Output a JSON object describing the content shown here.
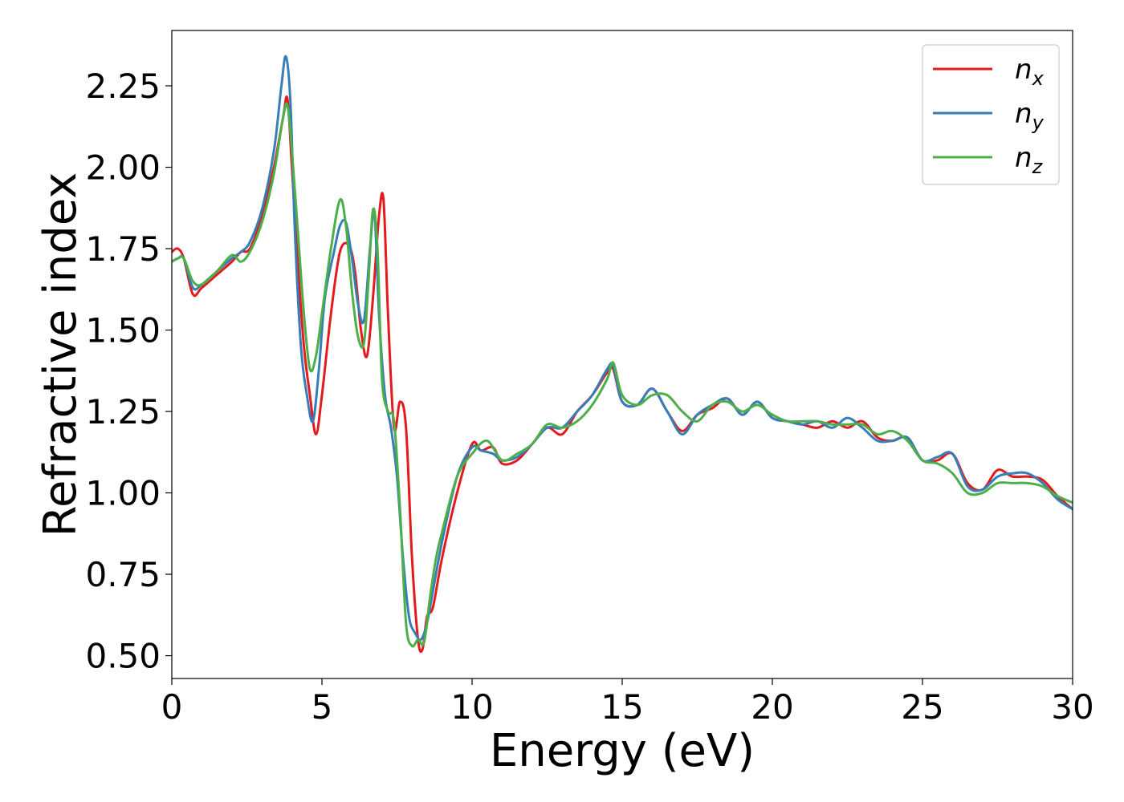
{
  "chart_data": {
    "type": "line",
    "title": "",
    "xlabel": "Energy (eV)",
    "ylabel": "Refractive index",
    "xlim": [
      0,
      30
    ],
    "ylim": [
      0.43,
      2.42
    ],
    "xticks": [
      0,
      5,
      10,
      15,
      20,
      25,
      30
    ],
    "xtick_labels": [
      "0",
      "5",
      "10",
      "15",
      "20",
      "25",
      "30"
    ],
    "yticks": [
      0.5,
      0.75,
      1.0,
      1.25,
      1.5,
      1.75,
      2.0,
      2.25
    ],
    "ytick_labels": [
      "0.50",
      "0.75",
      "1.00",
      "1.25",
      "1.50",
      "1.75",
      "2.00",
      "2.25"
    ],
    "grid": false,
    "legend_position": "top-right",
    "series": [
      {
        "name": "n_x",
        "label_base": "n",
        "label_sub": "x",
        "color": "#e41a1c",
        "x": [
          0,
          0.2,
          0.4,
          0.7,
          1.0,
          1.5,
          2.0,
          2.3,
          2.6,
          3.0,
          3.4,
          3.7,
          3.85,
          4.0,
          4.2,
          4.4,
          4.6,
          4.8,
          5.0,
          5.3,
          5.6,
          5.9,
          6.1,
          6.3,
          6.5,
          6.7,
          6.9,
          7.05,
          7.2,
          7.4,
          7.6,
          7.8,
          8.0,
          8.2,
          8.35,
          8.5,
          8.7,
          9.0,
          9.5,
          10.0,
          10.3,
          10.7,
          11.0,
          11.5,
          12.0,
          12.5,
          13.0,
          13.5,
          14.0,
          14.5,
          14.7,
          15.0,
          15.5,
          16.0,
          16.5,
          17.0,
          17.5,
          18.0,
          18.5,
          19.0,
          19.5,
          20.0,
          20.5,
          21.0,
          21.5,
          22.0,
          22.5,
          23.0,
          23.5,
          24.0,
          24.5,
          25.0,
          25.5,
          26.0,
          26.5,
          27.0,
          27.5,
          28.0,
          28.5,
          29.0,
          29.5,
          30.0
        ],
        "y": [
          1.74,
          1.75,
          1.72,
          1.61,
          1.63,
          1.67,
          1.71,
          1.74,
          1.75,
          1.85,
          2.0,
          2.15,
          2.21,
          2.0,
          1.7,
          1.45,
          1.3,
          1.18,
          1.3,
          1.55,
          1.74,
          1.76,
          1.68,
          1.5,
          1.42,
          1.6,
          1.85,
          1.9,
          1.55,
          1.2,
          1.28,
          1.2,
          0.8,
          0.55,
          0.52,
          0.62,
          0.65,
          0.8,
          1.0,
          1.15,
          1.13,
          1.14,
          1.09,
          1.1,
          1.15,
          1.2,
          1.18,
          1.25,
          1.3,
          1.37,
          1.38,
          1.28,
          1.27,
          1.32,
          1.25,
          1.19,
          1.24,
          1.26,
          1.29,
          1.24,
          1.28,
          1.23,
          1.22,
          1.21,
          1.2,
          1.22,
          1.2,
          1.22,
          1.17,
          1.16,
          1.17,
          1.1,
          1.1,
          1.12,
          1.03,
          1.01,
          1.07,
          1.05,
          1.05,
          1.04,
          0.99,
          0.95
        ]
      },
      {
        "name": "n_y",
        "label_base": "n",
        "label_sub": "y",
        "color": "#377eb8",
        "x": [
          0,
          0.2,
          0.4,
          0.7,
          1.0,
          1.5,
          2.0,
          2.3,
          2.6,
          3.0,
          3.4,
          3.65,
          3.8,
          3.95,
          4.1,
          4.3,
          4.5,
          4.7,
          4.9,
          5.1,
          5.4,
          5.6,
          5.8,
          6.0,
          6.2,
          6.4,
          6.6,
          6.75,
          6.9,
          7.1,
          7.3,
          7.5,
          7.7,
          7.9,
          8.1,
          8.3,
          8.5,
          8.7,
          9.0,
          9.5,
          10.0,
          10.3,
          10.7,
          11.0,
          11.5,
          12.0,
          12.5,
          13.0,
          13.5,
          14.0,
          14.5,
          14.7,
          15.0,
          15.5,
          16.0,
          16.5,
          17.0,
          17.5,
          18.0,
          18.5,
          19.0,
          19.5,
          20.0,
          20.5,
          21.0,
          21.5,
          22.0,
          22.5,
          23.0,
          23.5,
          24.0,
          24.5,
          25.0,
          25.5,
          26.0,
          26.5,
          27.0,
          27.5,
          28.0,
          28.5,
          29.0,
          29.5,
          30.0
        ],
        "y": [
          1.71,
          1.72,
          1.72,
          1.63,
          1.64,
          1.68,
          1.72,
          1.74,
          1.77,
          1.87,
          2.05,
          2.25,
          2.34,
          2.2,
          1.8,
          1.45,
          1.3,
          1.22,
          1.38,
          1.6,
          1.74,
          1.82,
          1.83,
          1.72,
          1.58,
          1.53,
          1.75,
          1.86,
          1.55,
          1.3,
          1.2,
          1.05,
          0.8,
          0.62,
          0.57,
          0.55,
          0.6,
          0.7,
          0.85,
          1.05,
          1.14,
          1.13,
          1.12,
          1.1,
          1.11,
          1.15,
          1.2,
          1.2,
          1.25,
          1.3,
          1.38,
          1.39,
          1.28,
          1.27,
          1.32,
          1.25,
          1.18,
          1.24,
          1.27,
          1.29,
          1.24,
          1.28,
          1.23,
          1.22,
          1.21,
          1.22,
          1.2,
          1.23,
          1.2,
          1.16,
          1.16,
          1.17,
          1.1,
          1.11,
          1.12,
          1.02,
          1.01,
          1.05,
          1.06,
          1.06,
          1.03,
          0.98,
          0.95
        ]
      },
      {
        "name": "n_z",
        "label_base": "n",
        "label_sub": "z",
        "color": "#4daf4a",
        "x": [
          0,
          0.2,
          0.4,
          0.7,
          1.0,
          1.5,
          2.0,
          2.3,
          2.6,
          3.0,
          3.4,
          3.7,
          3.85,
          4.0,
          4.2,
          4.4,
          4.6,
          4.8,
          5.0,
          5.3,
          5.6,
          5.8,
          6.0,
          6.2,
          6.4,
          6.55,
          6.7,
          6.85,
          7.0,
          7.2,
          7.4,
          7.6,
          7.8,
          8.0,
          8.2,
          8.4,
          8.6,
          8.8,
          9.0,
          9.5,
          10.0,
          10.5,
          11.0,
          11.5,
          12.0,
          12.5,
          13.0,
          13.5,
          14.0,
          14.5,
          14.7,
          15.0,
          15.5,
          16.0,
          16.5,
          17.0,
          17.5,
          18.0,
          18.5,
          19.0,
          19.5,
          20.0,
          20.5,
          21.0,
          21.5,
          22.0,
          22.5,
          23.0,
          23.5,
          24.0,
          24.5,
          25.0,
          25.5,
          26.0,
          26.5,
          27.0,
          27.5,
          28.0,
          28.5,
          29.0,
          29.5,
          30.0
        ],
        "y": [
          1.71,
          1.72,
          1.72,
          1.65,
          1.64,
          1.68,
          1.73,
          1.71,
          1.74,
          1.83,
          1.98,
          2.15,
          2.19,
          2.05,
          1.8,
          1.55,
          1.38,
          1.42,
          1.55,
          1.75,
          1.9,
          1.82,
          1.62,
          1.48,
          1.46,
          1.65,
          1.87,
          1.75,
          1.35,
          1.25,
          1.22,
          0.95,
          0.6,
          0.53,
          0.55,
          0.54,
          0.68,
          0.8,
          0.88,
          1.05,
          1.12,
          1.16,
          1.1,
          1.12,
          1.15,
          1.21,
          1.2,
          1.22,
          1.27,
          1.35,
          1.4,
          1.3,
          1.27,
          1.3,
          1.3,
          1.25,
          1.22,
          1.27,
          1.28,
          1.25,
          1.27,
          1.24,
          1.22,
          1.22,
          1.22,
          1.21,
          1.21,
          1.21,
          1.18,
          1.19,
          1.16,
          1.1,
          1.09,
          1.06,
          1.0,
          1.0,
          1.03,
          1.03,
          1.03,
          1.02,
          0.99,
          0.97
        ]
      }
    ]
  }
}
